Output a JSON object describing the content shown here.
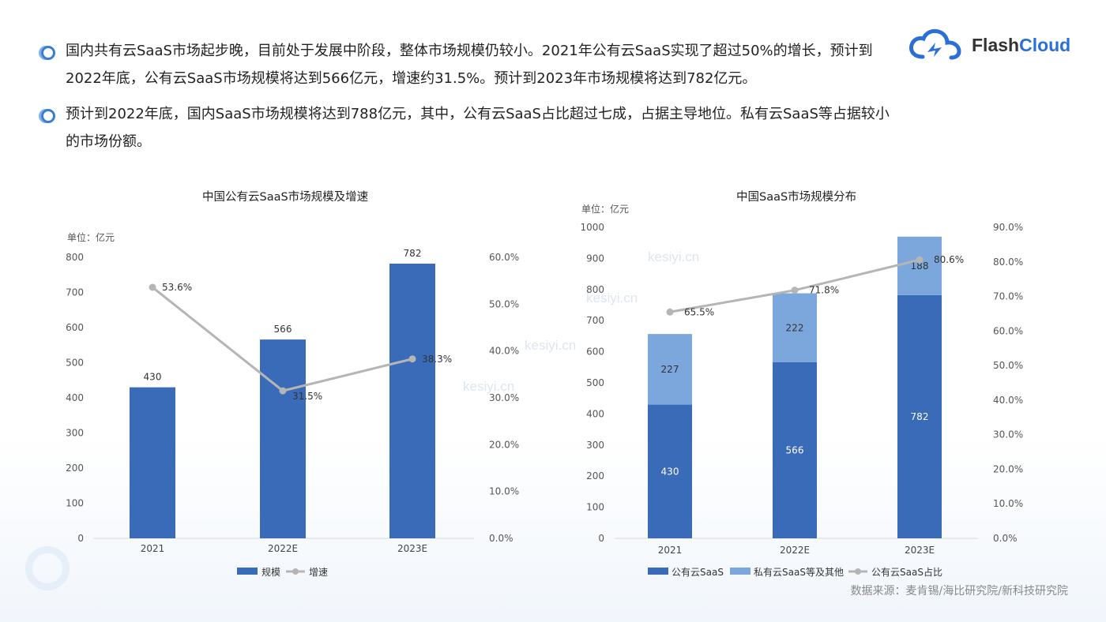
{
  "bullets": [
    "国内共有云SaaS市场起步晚，目前处于发展中阶段，整体市场规模仍较小。2021年公有云SaaS实现了超过50%的增长，预计到2022年底，公有云SaaS市场规模将达到566亿元，增速约31.5%。预计到2023年市场规模将达到782亿元。",
    "预计到2022年底，国内SaaS市场规模将达到788亿元，其中，公有云SaaS占比超过七成，占据主导地位。私有云SaaS等占据较小的市场份额。"
  ],
  "logo": {
    "flash": "Flash",
    "cloud": "Cloud"
  },
  "source": "数据来源：麦肯锡/海比研究院/新科技研究院",
  "watermarks": [
    "kesiyi.cn",
    "kesiyi.cn",
    "kesiyi.cn",
    "kesiyi.cn"
  ],
  "colors": {
    "bar_dark": "#3a6bb8",
    "bar_light": "#7ba7dc",
    "line": "#b5b5b5",
    "accent": "#2a6fd6"
  },
  "chart_data": [
    {
      "type": "bar",
      "title": "中国公有云SaaS市场规模及增速",
      "unit": "单位：亿元",
      "categories": [
        "2021",
        "2022E",
        "2023E"
      ],
      "y_ticks": [
        "0",
        "100",
        "200",
        "300",
        "400",
        "500",
        "600",
        "700",
        "800"
      ],
      "y2_ticks": [
        "0.0%",
        "10.0%",
        "20.0%",
        "30.0%",
        "40.0%",
        "50.0%",
        "60.0%"
      ],
      "ylim": [
        0,
        800
      ],
      "y2lim": [
        0,
        60
      ],
      "series": [
        {
          "name": "规模",
          "type": "bar",
          "values": [
            430,
            566,
            782
          ],
          "labels": [
            "430",
            "566",
            "782"
          ]
        },
        {
          "name": "增速",
          "type": "line",
          "axis": "right",
          "values": [
            53.6,
            31.5,
            38.3
          ],
          "labels": [
            "53.6%",
            "31.5%",
            "38.3%"
          ]
        }
      ],
      "legend": [
        "规模",
        "增速"
      ],
      "legend_position": "bottom"
    },
    {
      "type": "bar",
      "stacked": true,
      "title": "中国SaaS市场规模分布",
      "unit": "单位：亿元",
      "categories": [
        "2021",
        "2022E",
        "2023E"
      ],
      "y_ticks": [
        "0",
        "100",
        "200",
        "300",
        "400",
        "500",
        "600",
        "700",
        "800",
        "900",
        "1000"
      ],
      "y2_ticks": [
        "0.0%",
        "10.0%",
        "20.0%",
        "30.0%",
        "40.0%",
        "50.0%",
        "60.0%",
        "70.0%",
        "80.0%",
        "90.0%"
      ],
      "ylim": [
        0,
        1000
      ],
      "y2lim": [
        0,
        90
      ],
      "series": [
        {
          "name": "公有云SaaS",
          "type": "bar",
          "values": [
            430,
            566,
            782
          ],
          "labels": [
            "430",
            "566",
            "782"
          ]
        },
        {
          "name": "私有云SaaS等及其他",
          "type": "bar",
          "values": [
            227,
            222,
            188
          ],
          "labels": [
            "227",
            "222",
            "188"
          ]
        },
        {
          "name": "公有云SaaS占比",
          "type": "line",
          "axis": "right",
          "values": [
            65.5,
            71.8,
            80.6
          ],
          "labels": [
            "65.5%",
            "71.8%",
            "80.6%"
          ]
        }
      ],
      "legend": [
        "公有云SaaS",
        "私有云SaaS等及其他",
        "公有云SaaS占比"
      ],
      "legend_position": "bottom"
    }
  ]
}
